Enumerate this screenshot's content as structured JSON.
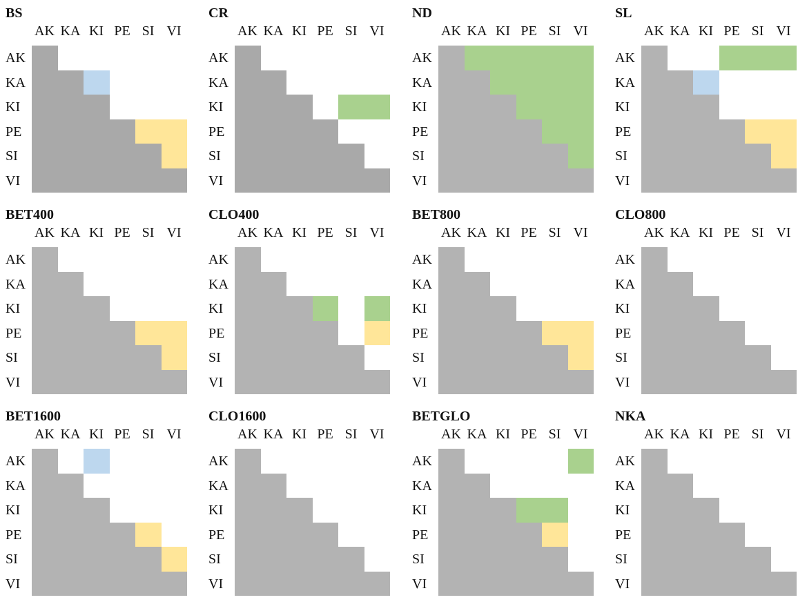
{
  "labels": [
    "AK",
    "KA",
    "KI",
    "PE",
    "SI",
    "VI"
  ],
  "colors": {
    "gray": "#b3b3b3",
    "gray_dark": "#a9a9a9",
    "blue": "#bdd7ee",
    "green": "#a9d18e",
    "yellow": "#ffe699"
  },
  "panels": [
    {
      "title": "BS",
      "gray": "#a9a9a9",
      "highlights": [
        {
          "r": 1,
          "c": 2,
          "color": "blue"
        },
        {
          "r": 3,
          "c": 4,
          "color": "yellow"
        },
        {
          "r": 3,
          "c": 5,
          "color": "yellow"
        },
        {
          "r": 4,
          "c": 5,
          "color": "yellow"
        }
      ]
    },
    {
      "title": "CR",
      "gray": "#a9a9a9",
      "highlights": [
        {
          "r": 2,
          "c": 4,
          "color": "green"
        },
        {
          "r": 2,
          "c": 5,
          "color": "green"
        }
      ]
    },
    {
      "title": "ND",
      "gray": "#b3b3b3",
      "highlights": [
        {
          "r": 0,
          "c": 1,
          "color": "green"
        },
        {
          "r": 0,
          "c": 2,
          "color": "green"
        },
        {
          "r": 0,
          "c": 3,
          "color": "green"
        },
        {
          "r": 0,
          "c": 4,
          "color": "green"
        },
        {
          "r": 0,
          "c": 5,
          "color": "green"
        },
        {
          "r": 1,
          "c": 2,
          "color": "green"
        },
        {
          "r": 1,
          "c": 3,
          "color": "green"
        },
        {
          "r": 1,
          "c": 4,
          "color": "green"
        },
        {
          "r": 1,
          "c": 5,
          "color": "green"
        },
        {
          "r": 2,
          "c": 3,
          "color": "green"
        },
        {
          "r": 2,
          "c": 4,
          "color": "green"
        },
        {
          "r": 2,
          "c": 5,
          "color": "green"
        },
        {
          "r": 3,
          "c": 4,
          "color": "green"
        },
        {
          "r": 3,
          "c": 5,
          "color": "green"
        },
        {
          "r": 4,
          "c": 5,
          "color": "green"
        }
      ]
    },
    {
      "title": "SL",
      "gray": "#b3b3b3",
      "highlights": [
        {
          "r": 0,
          "c": 3,
          "color": "green"
        },
        {
          "r": 0,
          "c": 4,
          "color": "green"
        },
        {
          "r": 0,
          "c": 5,
          "color": "green"
        },
        {
          "r": 1,
          "c": 2,
          "color": "blue"
        },
        {
          "r": 3,
          "c": 4,
          "color": "yellow"
        },
        {
          "r": 3,
          "c": 5,
          "color": "yellow"
        },
        {
          "r": 4,
          "c": 5,
          "color": "yellow"
        }
      ]
    },
    {
      "title": "BET400",
      "gray": "#b3b3b3",
      "highlights": [
        {
          "r": 3,
          "c": 4,
          "color": "yellow"
        },
        {
          "r": 3,
          "c": 5,
          "color": "yellow"
        },
        {
          "r": 4,
          "c": 5,
          "color": "yellow"
        }
      ]
    },
    {
      "title": "CLO400",
      "gray": "#b3b3b3",
      "highlights": [
        {
          "r": 2,
          "c": 3,
          "color": "green"
        },
        {
          "r": 2,
          "c": 5,
          "color": "green"
        },
        {
          "r": 3,
          "c": 5,
          "color": "yellow"
        }
      ]
    },
    {
      "title": "BET800",
      "gray": "#b3b3b3",
      "highlights": [
        {
          "r": 3,
          "c": 4,
          "color": "yellow"
        },
        {
          "r": 3,
          "c": 5,
          "color": "yellow"
        },
        {
          "r": 4,
          "c": 5,
          "color": "yellow"
        }
      ]
    },
    {
      "title": "CLO800",
      "gray": "#b3b3b3",
      "highlights": []
    },
    {
      "title": "BET1600",
      "gray": "#b3b3b3",
      "highlights": [
        {
          "r": 0,
          "c": 2,
          "color": "blue"
        },
        {
          "r": 3,
          "c": 4,
          "color": "yellow"
        },
        {
          "r": 4,
          "c": 5,
          "color": "yellow"
        }
      ]
    },
    {
      "title": "CLO1600",
      "gray": "#b3b3b3",
      "highlights": []
    },
    {
      "title": "BETGLO",
      "gray": "#b3b3b3",
      "highlights": [
        {
          "r": 0,
          "c": 5,
          "color": "green"
        },
        {
          "r": 2,
          "c": 3,
          "color": "green"
        },
        {
          "r": 2,
          "c": 4,
          "color": "green"
        },
        {
          "r": 3,
          "c": 4,
          "color": "yellow"
        }
      ]
    },
    {
      "title": "NKA",
      "gray": "#b3b3b3",
      "highlights": []
    }
  ]
}
